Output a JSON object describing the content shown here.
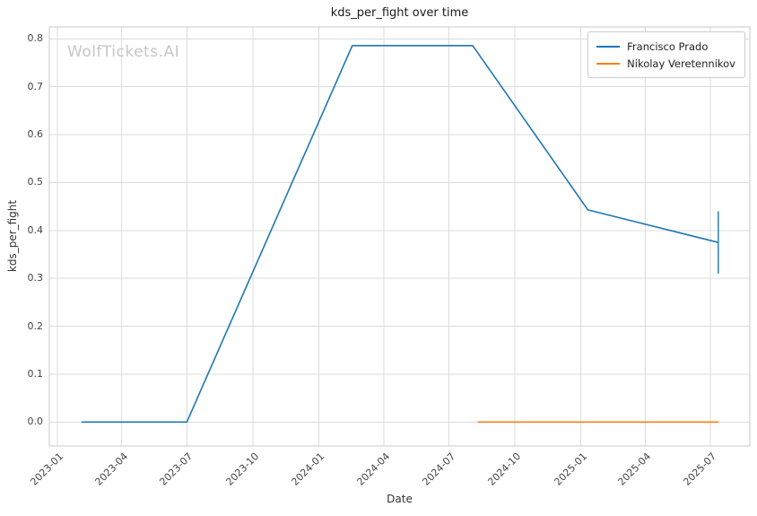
{
  "chart_data": {
    "type": "line",
    "title": "kds_per_fight over time",
    "xlabel": "Date",
    "ylabel": "kds_per_fight",
    "watermark": "WolfTickets.AI",
    "grid": true,
    "legend_position": "upper right",
    "x_tick_labels": [
      "2023-01",
      "2023-04",
      "2023-07",
      "2023-10",
      "2024-01",
      "2024-04",
      "2024-07",
      "2024-10",
      "2025-01",
      "2025-04",
      "2025-07"
    ],
    "y_tick_labels": [
      0.0,
      0.1,
      0.2,
      0.3,
      0.4,
      0.5,
      0.6,
      0.7,
      0.8
    ],
    "x_domain": [
      "2022-12-21",
      "2025-08-25"
    ],
    "ylim": [
      -0.05,
      0.825
    ],
    "series": [
      {
        "name": "Francisco Prado",
        "color": "#1f77b4",
        "points": [
          {
            "date": "2023-02-04",
            "value": 0.0
          },
          {
            "date": "2023-07-01",
            "value": 0.0
          },
          {
            "date": "2024-02-17",
            "value": 0.786
          },
          {
            "date": "2024-08-03",
            "value": 0.786
          },
          {
            "date": "2025-01-11",
            "value": 0.443
          },
          {
            "date": "2025-07-12",
            "value": 0.375
          }
        ],
        "error_bar": {
          "date": "2025-07-12",
          "low": 0.31,
          "high": 0.44
        }
      },
      {
        "name": "Nikolay Veretennikov",
        "color": "#ff7f0e",
        "points": [
          {
            "date": "2024-08-10",
            "value": 0.0
          },
          {
            "date": "2025-07-12",
            "value": 0.0
          }
        ]
      }
    ]
  }
}
